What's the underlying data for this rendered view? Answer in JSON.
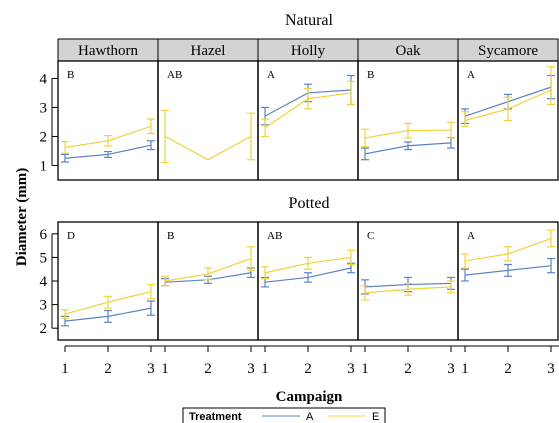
{
  "chart_data": {
    "type": "line",
    "xlabel": "Campaign",
    "ylabel": "Diameter (mm)",
    "x": [
      1,
      2,
      3
    ],
    "x_ticks": [
      "1",
      "2",
      "3"
    ],
    "legend": {
      "title": "Treatment",
      "placement": "bottom"
    },
    "series_colors": {
      "A": "#5b84c4",
      "E": "#f4d23c"
    },
    "panel_header_color": "#d3d3d3",
    "rows": [
      {
        "title": "Natural",
        "ylim": [
          0.5,
          4.6
        ],
        "y_ticks": [
          1,
          2,
          3,
          4
        ],
        "panels": [
          {
            "title": "Hawthorn",
            "letter": "B",
            "series": [
              {
                "name": "A",
                "values": [
                  1.25,
                  1.38,
                  1.7
                ],
                "lower": [
                  1.12,
                  1.28,
                  1.55
                ],
                "upper": [
                  1.38,
                  1.48,
                  1.85
                ]
              },
              {
                "name": "E",
                "values": [
                  1.62,
                  1.85,
                  2.35
                ],
                "lower": [
                  1.42,
                  1.67,
                  2.1
                ],
                "upper": [
                  1.82,
                  2.03,
                  2.6
                ]
              }
            ]
          },
          {
            "title": "Hazel",
            "letter": "AB",
            "series": [
              {
                "name": "E",
                "values": [
                  2.0,
                  1.2,
                  2.0
                ],
                "lower": [
                  1.1,
                  null,
                  1.2
                ],
                "upper": [
                  2.9,
                  null,
                  2.8
                ]
              }
            ]
          },
          {
            "title": "Holly",
            "letter": "A",
            "series": [
              {
                "name": "A",
                "values": [
                  2.7,
                  3.5,
                  3.6
                ],
                "lower": [
                  2.4,
                  3.2,
                  3.1
                ],
                "upper": [
                  3.0,
                  3.8,
                  4.1
                ]
              },
              {
                "name": "E",
                "values": [
                  2.3,
                  3.3,
                  3.5
                ],
                "lower": [
                  2.0,
                  2.95,
                  3.1
                ],
                "upper": [
                  2.6,
                  3.65,
                  3.9
                ]
              }
            ]
          },
          {
            "title": "Oak",
            "letter": "B",
            "series": [
              {
                "name": "A",
                "values": [
                  1.4,
                  1.68,
                  1.78
                ],
                "lower": [
                  1.2,
                  1.55,
                  1.6
                ],
                "upper": [
                  1.6,
                  1.81,
                  1.96
                ]
              },
              {
                "name": "E",
                "values": [
                  1.95,
                  2.2,
                  2.22
                ],
                "lower": [
                  1.65,
                  1.95,
                  1.95
                ],
                "upper": [
                  2.25,
                  2.45,
                  2.49
                ]
              }
            ]
          },
          {
            "title": "Sycamore",
            "letter": "A",
            "series": [
              {
                "name": "A",
                "values": [
                  2.7,
                  3.2,
                  3.7
                ],
                "lower": [
                  2.45,
                  2.95,
                  3.3
                ],
                "upper": [
                  2.95,
                  3.45,
                  4.1
                ]
              },
              {
                "name": "E",
                "values": [
                  2.55,
                  2.95,
                  3.6
                ],
                "lower": [
                  2.35,
                  2.55,
                  3.1
                ],
                "upper": [
                  2.85,
                  3.35,
                  4.4
                ]
              }
            ]
          }
        ]
      },
      {
        "title": "Potted",
        "ylim": [
          1.5,
          6.5
        ],
        "y_ticks": [
          2,
          3,
          4,
          5,
          6
        ],
        "panels": [
          {
            "title": "Hawthorn",
            "letter": "D",
            "series": [
              {
                "name": "A",
                "values": [
                  2.3,
                  2.5,
                  2.85
                ],
                "lower": [
                  2.1,
                  2.25,
                  2.55
                ],
                "upper": [
                  2.5,
                  2.75,
                  3.15
                ]
              },
              {
                "name": "E",
                "values": [
                  2.6,
                  3.1,
                  3.55
                ],
                "lower": [
                  2.42,
                  2.85,
                  3.25
                ],
                "upper": [
                  2.78,
                  3.35,
                  3.85
                ]
              }
            ]
          },
          {
            "title": "Hazel",
            "letter": "B",
            "series": [
              {
                "name": "A",
                "values": [
                  3.95,
                  4.05,
                  4.35
                ],
                "lower": [
                  3.8,
                  3.9,
                  4.15
                ],
                "upper": [
                  4.1,
                  4.2,
                  4.55
                ]
              },
              {
                "name": "E",
                "values": [
                  4.0,
                  4.3,
                  4.95
                ],
                "lower": [
                  3.8,
                  4.05,
                  4.45
                ],
                "upper": [
                  4.2,
                  4.55,
                  5.45
                ]
              }
            ]
          },
          {
            "title": "Holly",
            "letter": "AB",
            "series": [
              {
                "name": "A",
                "values": [
                  3.95,
                  4.15,
                  4.55
                ],
                "lower": [
                  3.75,
                  3.95,
                  4.35
                ],
                "upper": [
                  4.15,
                  4.35,
                  4.75
                ]
              },
              {
                "name": "E",
                "values": [
                  4.35,
                  4.75,
                  5.0
                ],
                "lower": [
                  4.1,
                  4.5,
                  4.7
                ],
                "upper": [
                  4.6,
                  5.0,
                  5.3
                ]
              }
            ]
          },
          {
            "title": "Oak",
            "letter": "C",
            "series": [
              {
                "name": "A",
                "values": [
                  3.75,
                  3.85,
                  3.9
                ],
                "lower": [
                  3.45,
                  3.55,
                  3.65
                ],
                "upper": [
                  4.05,
                  4.15,
                  4.15
                ]
              },
              {
                "name": "E",
                "values": [
                  3.5,
                  3.65,
                  3.75
                ],
                "lower": [
                  3.2,
                  3.4,
                  3.5
                ],
                "upper": [
                  3.8,
                  3.9,
                  4.0
                ]
              }
            ]
          },
          {
            "title": "Sycamore",
            "letter": "A",
            "series": [
              {
                "name": "A",
                "values": [
                  4.25,
                  4.45,
                  4.65
                ],
                "lower": [
                  4.0,
                  4.2,
                  4.35
                ],
                "upper": [
                  4.5,
                  4.7,
                  4.95
                ]
              },
              {
                "name": "E",
                "values": [
                  4.85,
                  5.15,
                  5.8
                ],
                "lower": [
                  4.55,
                  4.85,
                  5.45
                ],
                "upper": [
                  5.15,
                  5.45,
                  6.15
                ]
              }
            ]
          }
        ]
      }
    ]
  }
}
